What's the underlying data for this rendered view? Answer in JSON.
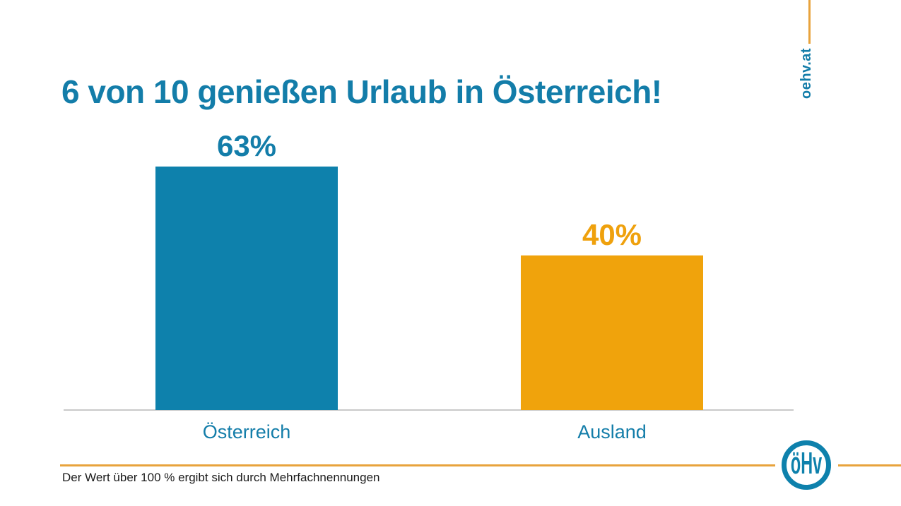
{
  "slide": {
    "title": "6 von 10 genießen Urlaub in Österreich!",
    "footnote": "Der Wert über 100 % ergibt sich durch Mehrfachnennungen",
    "brand": {
      "url_text": "oehv.at",
      "logo_text": "öHv"
    },
    "colors": {
      "teal_text": "#137da9",
      "bar_blue": "#0e81ac",
      "bar_orange": "#f0a30c",
      "accent_gold_line": "#e8a33c",
      "axis_gray": "#c9c9c9",
      "footnote_text": "#1a1a1a",
      "background": "#ffffff"
    }
  },
  "chart_data": {
    "type": "bar",
    "categories": [
      "Österreich",
      "Ausland"
    ],
    "values": [
      63,
      40
    ],
    "value_labels": [
      "63%",
      "40%"
    ],
    "bar_colors": [
      "#0e81ac",
      "#f0a30c"
    ],
    "value_label_colors": [
      "#137da9",
      "#efa10d"
    ],
    "title": "6 von 10 genießen Urlaub in Österreich!",
    "xlabel": "",
    "ylabel": "",
    "ylim": [
      0,
      73
    ],
    "grid": false,
    "legend": false,
    "annotation": "Der Wert über 100 % ergibt sich durch Mehrfachnennungen"
  }
}
